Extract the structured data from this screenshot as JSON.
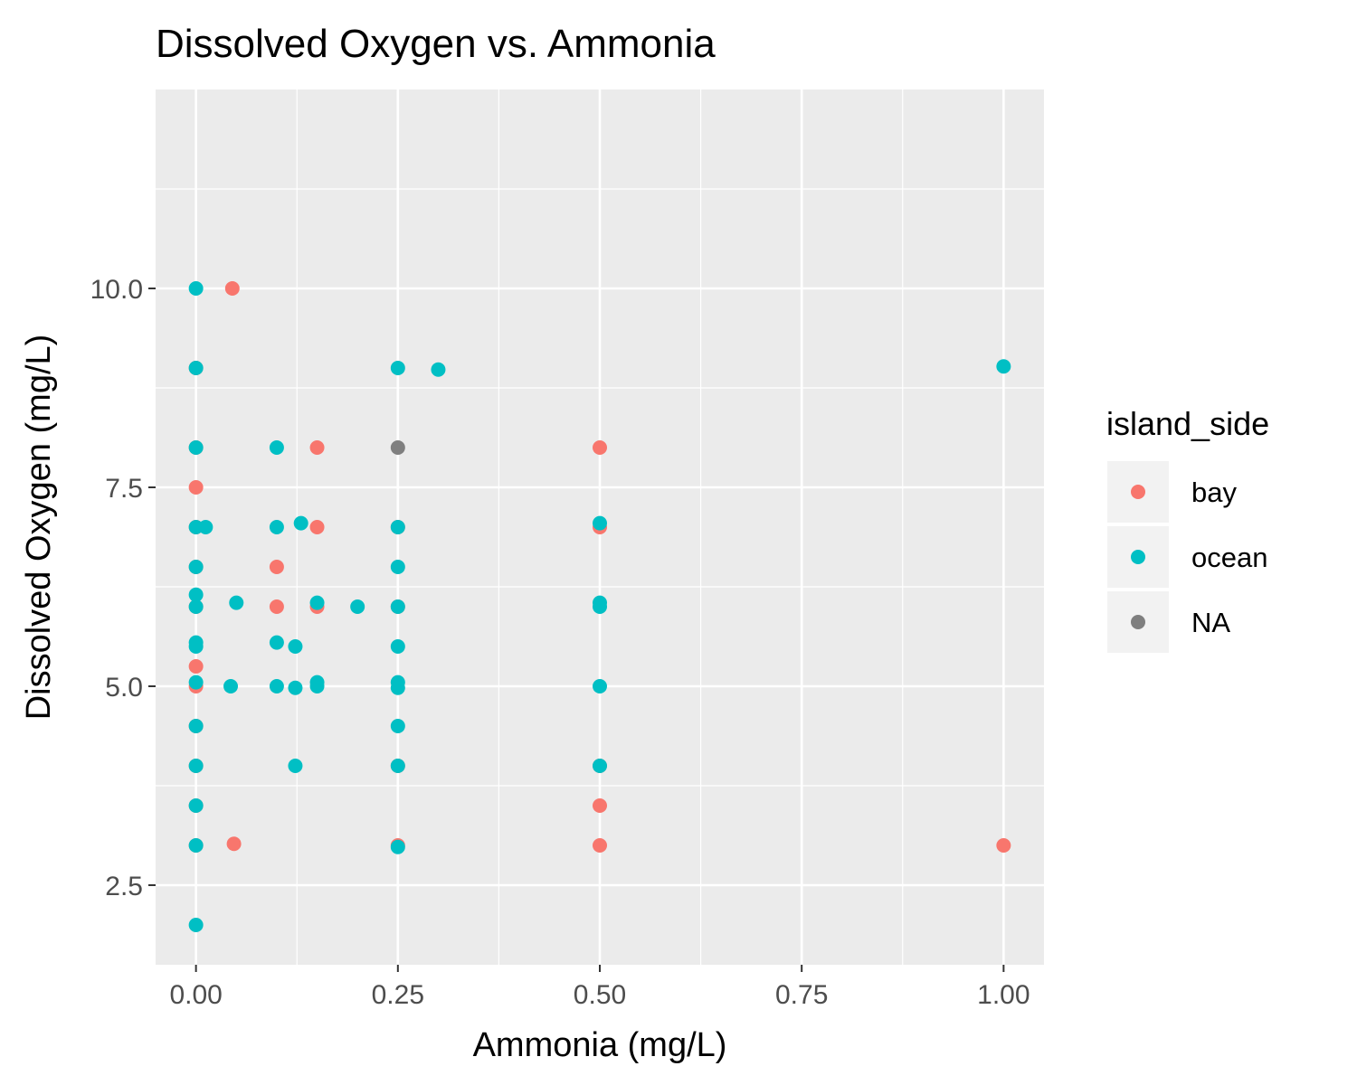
{
  "chart_data": {
    "type": "scatter",
    "title": "Dissolved Oxygen vs. Ammonia",
    "xlabel": "Ammonia (mg/L)",
    "ylabel": "Dissolved Oxygen (mg/L)",
    "xlim": [
      -0.05,
      1.05
    ],
    "ylim": [
      1.5,
      12.5
    ],
    "x_ticks": [
      0,
      0.25,
      0.5,
      0.75,
      1.0
    ],
    "x_tick_labels": [
      "0.00",
      "0.25",
      "0.50",
      "0.75",
      "1.00"
    ],
    "y_ticks": [
      2.5,
      5.0,
      7.5,
      10.0
    ],
    "y_tick_labels": [
      "2.5",
      "5.0",
      "7.5",
      "10.0"
    ],
    "grid": true,
    "legend": {
      "title": "island_side",
      "placement": "right",
      "entries": [
        {
          "label": "bay",
          "color": "#F8766D"
        },
        {
          "label": "ocean",
          "color": "#00BFC4"
        },
        {
          "label": "NA",
          "color": "#7F7F7F"
        }
      ]
    },
    "series": [
      {
        "name": "bay",
        "color": "#F8766D",
        "points": [
          [
            0.045,
            10.0
          ],
          [
            0.0,
            9.0
          ],
          [
            0.0,
            8.0
          ],
          [
            0.0,
            7.5
          ],
          [
            0.0,
            7.0
          ],
          [
            0.0,
            6.5
          ],
          [
            0.0,
            6.0
          ],
          [
            0.0,
            5.25
          ],
          [
            0.0,
            5.0
          ],
          [
            0.0,
            4.5
          ],
          [
            0.0,
            4.0
          ],
          [
            0.0,
            3.5
          ],
          [
            0.0,
            3.0
          ],
          [
            0.047,
            3.02
          ],
          [
            0.1,
            6.5
          ],
          [
            0.1,
            6.0
          ],
          [
            0.15,
            8.0
          ],
          [
            0.15,
            7.0
          ],
          [
            0.15,
            6.0
          ],
          [
            0.25,
            7.0
          ],
          [
            0.25,
            6.0
          ],
          [
            0.25,
            4.0
          ],
          [
            0.25,
            3.0
          ],
          [
            0.5,
            8.0
          ],
          [
            0.5,
            7.0
          ],
          [
            0.5,
            4.0
          ],
          [
            0.5,
            3.5
          ],
          [
            0.5,
            3.0
          ],
          [
            1.0,
            3.0
          ]
        ]
      },
      {
        "name": "ocean",
        "color": "#00BFC4",
        "points": [
          [
            0.0,
            10.0
          ],
          [
            0.0,
            9.0
          ],
          [
            0.0,
            8.0
          ],
          [
            0.0,
            7.0
          ],
          [
            0.012,
            7.0
          ],
          [
            0.0,
            6.5
          ],
          [
            0.0,
            6.15
          ],
          [
            0.0,
            6.0
          ],
          [
            0.0,
            5.55
          ],
          [
            0.0,
            5.5
          ],
          [
            0.0,
            5.05
          ],
          [
            0.0,
            4.5
          ],
          [
            0.0,
            4.0
          ],
          [
            0.0,
            3.5
          ],
          [
            0.0,
            3.0
          ],
          [
            0.0,
            2.0
          ],
          [
            0.043,
            5.0
          ],
          [
            0.05,
            6.05
          ],
          [
            0.1,
            8.0
          ],
          [
            0.1,
            7.0
          ],
          [
            0.1,
            5.55
          ],
          [
            0.1,
            5.0
          ],
          [
            0.123,
            5.5
          ],
          [
            0.123,
            4.98
          ],
          [
            0.123,
            4.0
          ],
          [
            0.13,
            7.05
          ],
          [
            0.15,
            6.05
          ],
          [
            0.15,
            5.05
          ],
          [
            0.15,
            5.0
          ],
          [
            0.2,
            6.0
          ],
          [
            0.25,
            9.0
          ],
          [
            0.25,
            7.0
          ],
          [
            0.25,
            6.5
          ],
          [
            0.25,
            6.0
          ],
          [
            0.25,
            5.5
          ],
          [
            0.25,
            5.05
          ],
          [
            0.25,
            4.98
          ],
          [
            0.25,
            4.5
          ],
          [
            0.25,
            4.0
          ],
          [
            0.25,
            2.98
          ],
          [
            0.3,
            8.98
          ],
          [
            0.5,
            7.05
          ],
          [
            0.5,
            6.05
          ],
          [
            0.5,
            6.0
          ],
          [
            0.5,
            5.0
          ],
          [
            0.5,
            4.0
          ],
          [
            1.0,
            9.02
          ]
        ]
      },
      {
        "name": "NA",
        "color": "#7F7F7F",
        "points": [
          [
            0.25,
            8.0
          ]
        ]
      }
    ]
  }
}
